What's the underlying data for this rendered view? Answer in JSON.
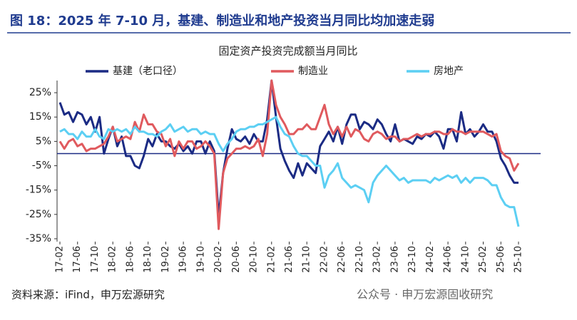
{
  "chart_data": {
    "type": "line",
    "heading": "图 18：2025 年 7-10 月，基建、制造业和地产投资当月同比均加速走弱",
    "title": "固定资产投资完成额当月同比",
    "source": "资料来源：iFind，申万宏源研究",
    "watermark": "公众号 · 申万宏源固收研究",
    "legend": "top",
    "categories": [
      "17-02",
      null,
      null,
      null,
      "17-06",
      null,
      null,
      null,
      "17-10",
      null,
      null,
      null,
      "18-02",
      null,
      null,
      null,
      "18-06",
      null,
      null,
      null,
      "18-10",
      null,
      null,
      null,
      "19-02",
      null,
      null,
      null,
      "19-06",
      null,
      null,
      null,
      "19-10",
      null,
      null,
      null,
      "20-02",
      null,
      null,
      null,
      "20-06",
      null,
      null,
      null,
      "20-10",
      null,
      null,
      null,
      "21-02",
      null,
      null,
      null,
      "21-06",
      null,
      null,
      null,
      "21-10",
      null,
      null,
      null,
      "22-02",
      null,
      null,
      null,
      "22-06",
      null,
      null,
      null,
      "22-10",
      null,
      null,
      null,
      "23-02",
      null,
      null,
      null,
      "23-06",
      null,
      null,
      null,
      "23-10",
      null,
      null,
      null,
      "24-02",
      null,
      null,
      null,
      "24-06",
      null,
      null,
      null,
      "24-10",
      null,
      null,
      null,
      "25-02",
      null,
      null,
      null,
      "25-06",
      null,
      null,
      null,
      "25-10"
    ],
    "series": [
      {
        "name": "基建（老口径）",
        "color": "#1b2b84",
        "values": [
          21,
          16,
          17,
          13,
          17,
          16,
          12,
          15,
          9,
          15,
          0,
          6,
          11,
          3,
          7,
          -1,
          -1,
          -5,
          -6,
          -1,
          6,
          3,
          8,
          5,
          5,
          3,
          2,
          4,
          1,
          3,
          0,
          5,
          5,
          0,
          5,
          1,
          -26,
          -8,
          2,
          10,
          6,
          5,
          7,
          4,
          8,
          5,
          5,
          14,
          30,
          15,
          2,
          -3,
          -7,
          -10,
          -4,
          -9,
          -4,
          -6,
          -8,
          3,
          6,
          9,
          5,
          11,
          4,
          12,
          16,
          16,
          10,
          13,
          12,
          10,
          14,
          12,
          8,
          5,
          12,
          5,
          6,
          5,
          4,
          7,
          6,
          8,
          7,
          9,
          7,
          2,
          10,
          10,
          5,
          17,
          8,
          10,
          7,
          9,
          12,
          9,
          9,
          5,
          -2,
          -5,
          -9,
          -12,
          -12
        ]
      },
      {
        "name": "制造业",
        "color": "#e05a5e",
        "values": [
          5,
          2,
          5,
          6,
          3,
          4,
          1,
          2,
          2,
          3,
          4,
          7,
          11,
          5,
          6,
          7,
          6,
          13,
          9,
          16,
          12,
          12,
          9,
          8,
          3,
          6,
          -1,
          5,
          2,
          5,
          5,
          2,
          3,
          5,
          3,
          0,
          -31,
          -8,
          -2,
          0,
          2,
          2,
          3,
          2,
          3,
          6,
          -1,
          8,
          30,
          20,
          15,
          12,
          8,
          8,
          10,
          10,
          12,
          10,
          10,
          15,
          20,
          12,
          8,
          11,
          7,
          11,
          7,
          10,
          9,
          6,
          5,
          8,
          9,
          8,
          6,
          7,
          7,
          5,
          6,
          6,
          7,
          8,
          7,
          8,
          8,
          9,
          9,
          8,
          8,
          10,
          9,
          9,
          8,
          9,
          9,
          9,
          9,
          8,
          7,
          8,
          1,
          -1,
          -2,
          -7,
          -4
        ]
      },
      {
        "name": "房地产",
        "color": "#5ccff3",
        "values": [
          9,
          10,
          8,
          8,
          6,
          9,
          7,
          7,
          10,
          7,
          6,
          10,
          9,
          10,
          9,
          10,
          8,
          11,
          9,
          9,
          8,
          8,
          7,
          9,
          10,
          12,
          9,
          10,
          11,
          9,
          10,
          10,
          8,
          9,
          8,
          8,
          4,
          1,
          4,
          6,
          9,
          10,
          10,
          11,
          11,
          12,
          12,
          13,
          14,
          15,
          11,
          8,
          7,
          3,
          0,
          -1,
          -1,
          -3,
          -5,
          -5,
          -14,
          -9,
          -7,
          -4,
          -10,
          -12,
          -14,
          -13,
          -14,
          -15,
          -20,
          -12,
          -9,
          -7,
          -5,
          -7,
          -9,
          -11,
          -10,
          -12,
          -11,
          -11,
          -11,
          -11,
          -12,
          -10,
          -11,
          -10,
          -9,
          -10,
          -9,
          -12,
          -10,
          -12,
          -10,
          -10,
          -10,
          -11,
          -13,
          -13,
          -18,
          -21,
          -22,
          -22,
          -30
        ]
      }
    ],
    "ylim": [
      -35,
      30
    ],
    "yticks": [
      {
        "value": 25,
        "label": "25%"
      },
      {
        "value": 15,
        "label": "15%"
      },
      {
        "value": 5,
        "label": "5%"
      },
      {
        "value": -5,
        "label": "-5%"
      },
      {
        "value": -15,
        "label": "-15%"
      },
      {
        "value": -25,
        "label": "-25%"
      },
      {
        "value": -35,
        "label": "-35%"
      }
    ]
  }
}
